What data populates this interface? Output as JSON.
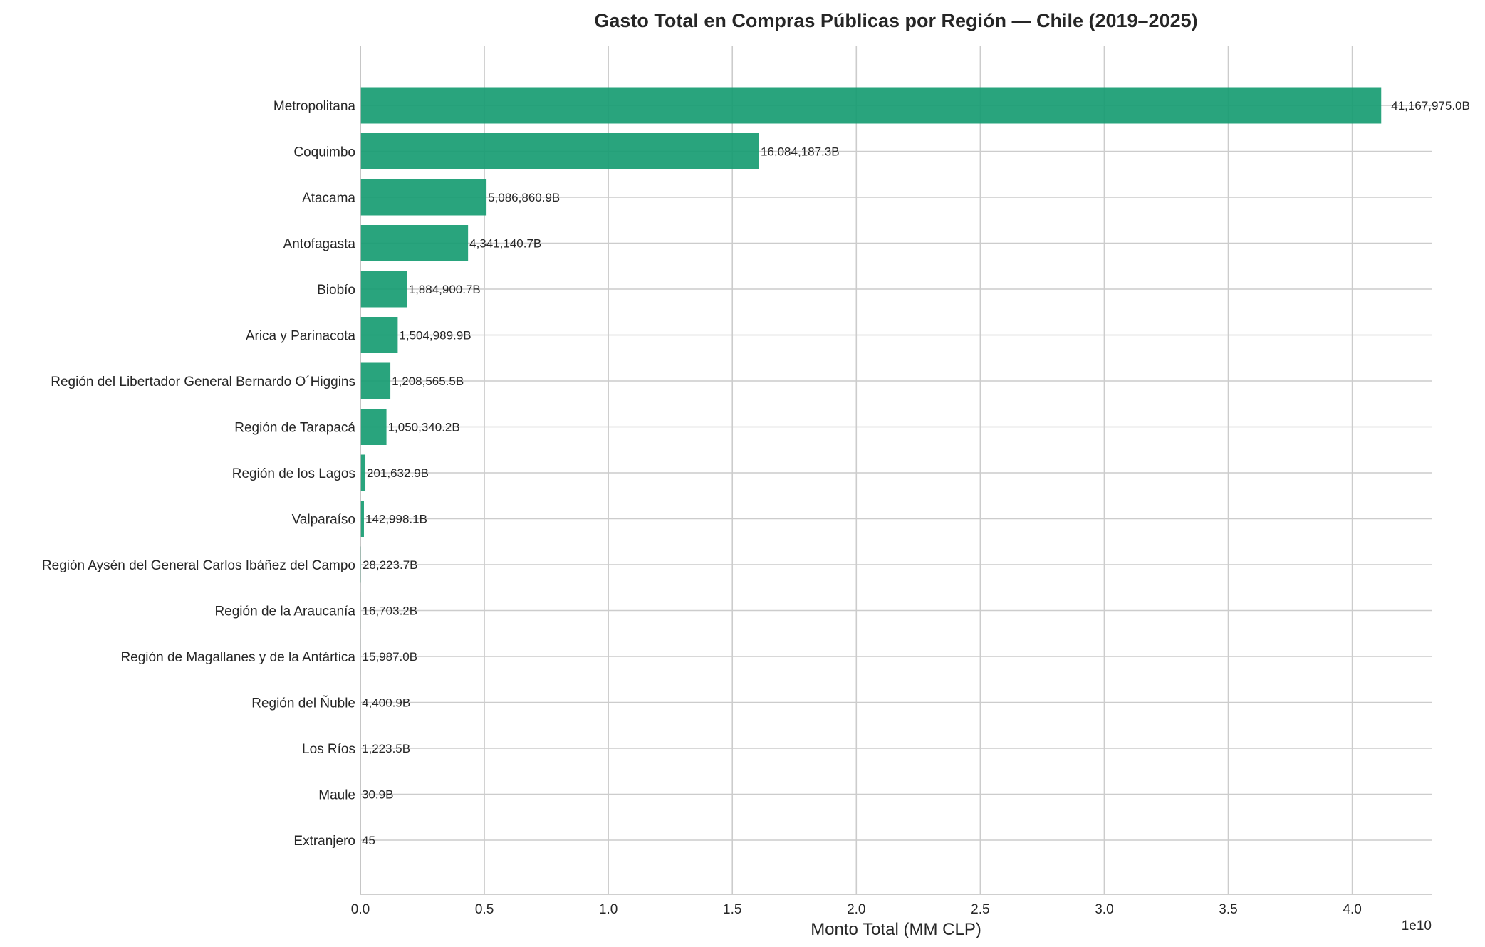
{
  "chart_data": {
    "type": "bar",
    "orientation": "horizontal",
    "title": "Gasto Total en Compras Públicas por Región — Chile (2019–2025)",
    "xlabel": "Monto Total (MM CLP)",
    "ylabel": "",
    "x_offset_text": "1e10",
    "xlim": [
      0,
      4.32
    ],
    "x_scale_multiplier": 10000000000,
    "x_ticks": [
      0.0,
      0.5,
      1.0,
      1.5,
      2.0,
      2.5,
      3.0,
      3.5,
      4.0
    ],
    "x_tick_labels": [
      "0.0",
      "0.5",
      "1.0",
      "1.5",
      "2.0",
      "2.5",
      "3.0",
      "3.5",
      "4.0"
    ],
    "grid": true,
    "bar_color": "#179c72",
    "categories": [
      "Metropolitana",
      "Coquimbo",
      "Atacama",
      "Antofagasta",
      "Biobío",
      "Arica y Parinacota",
      "Región del Libertador General Bernardo O´Higgins",
      "Región de Tarapacá",
      "Región de los Lagos",
      "Valparaíso",
      "Región Aysén del General Carlos Ibáñez del Campo",
      "Región de la Araucanía",
      "Región de Magallanes y de la Antártica",
      "Región del Ñuble",
      "Los Ríos",
      "Maule",
      "Extranjero"
    ],
    "values": [
      4.1167975,
      1.60841873,
      0.50868609,
      0.43411407,
      0.18849007,
      0.15049899,
      0.12085655,
      0.10503402,
      0.02016329,
      0.01429981,
      0.00282237,
      0.00167032,
      0.0015987,
      0.00044009,
      0.00012235,
      3.09e-06,
      4.5e-09
    ],
    "data_labels": [
      "41,167,975.0B",
      "16,084,187.3B",
      "5,086,860.9B",
      "4,341,140.7B",
      "1,884,900.7B",
      "1,504,989.9B",
      "1,208,565.5B",
      "1,050,340.2B",
      "201,632.9B",
      "142,998.1B",
      "28,223.7B",
      "16,703.2B",
      "15,987.0B",
      "4,400.9B",
      "1,223.5B",
      "30.9B",
      "45"
    ]
  }
}
